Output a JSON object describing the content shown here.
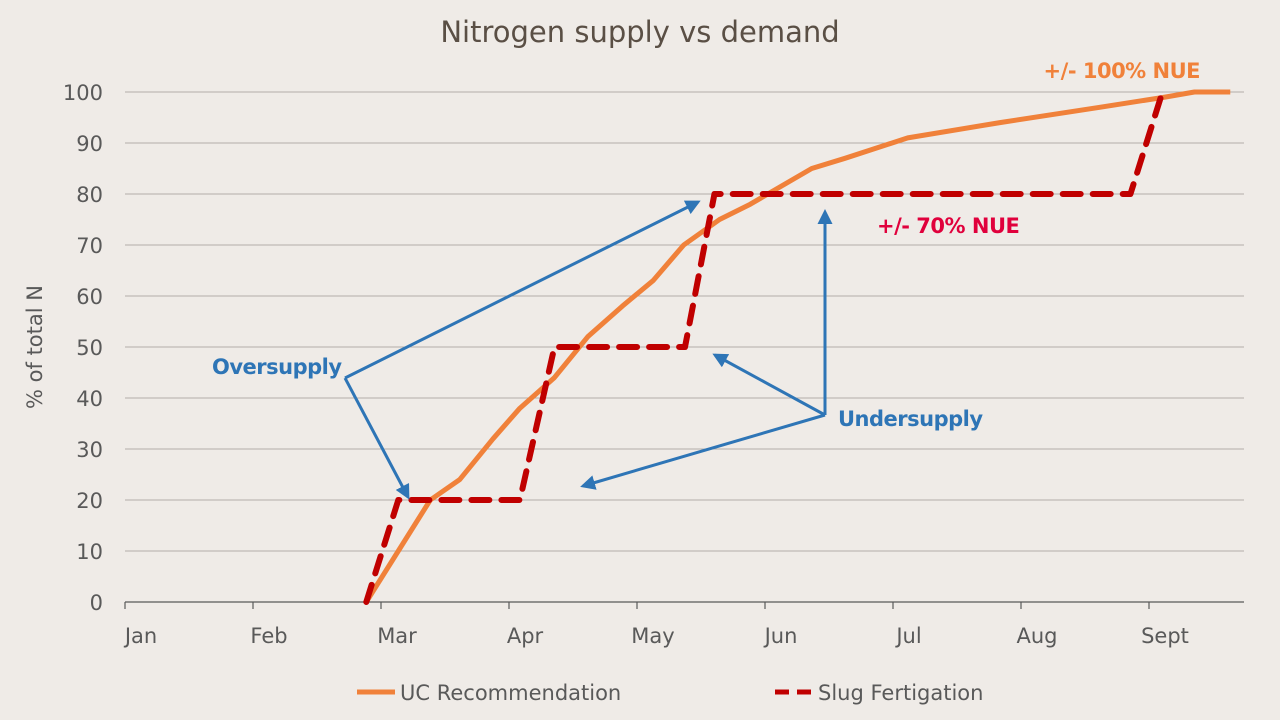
{
  "chart_data": {
    "type": "line",
    "title": "Nitrogen supply vs demand",
    "xlabel": "",
    "ylabel": "% of total N",
    "x_tick_labels": [
      "Jan",
      "Feb",
      "Mar",
      "Apr",
      "May",
      "Jun",
      "Jul",
      "Aug",
      "Sept"
    ],
    "y_ticks": [
      0,
      10,
      20,
      30,
      40,
      50,
      60,
      70,
      80,
      90,
      100
    ],
    "ylim": [
      0,
      100
    ],
    "x_unit": "month index (Jan=1)",
    "grid": "horizontal",
    "legend_placement": "bottom",
    "series": [
      {
        "name": "UC Recommendation",
        "color": "#f0813a",
        "style": "solid",
        "x": [
          2.76,
          3.01,
          3.26,
          3.49,
          3.75,
          3.96,
          4.23,
          4.49,
          4.76,
          5.0,
          5.24,
          5.52,
          5.76,
          6.24,
          6.5,
          6.99,
          7.71,
          8.49,
          9.0,
          9.23,
          9.51
        ],
        "y": [
          0,
          10,
          20,
          24,
          32,
          38,
          44,
          52,
          58,
          63,
          70,
          75,
          78,
          85,
          87,
          91,
          94,
          97,
          99,
          100,
          100
        ]
      },
      {
        "name": "Slug Fertigation",
        "color": "#c00000",
        "style": "dashed",
        "x": [
          2.76,
          3.01,
          3.96,
          4.23,
          5.25,
          5.48,
          8.73,
          8.98
        ],
        "y": [
          0,
          20,
          20,
          50,
          50,
          80,
          80,
          100
        ]
      }
    ],
    "annotations": {
      "nue_100": {
        "text": "+/- 100% NUE",
        "color": "#f0813a"
      },
      "nue_70": {
        "text": "+/- 70% NUE",
        "color": "#e0003c"
      },
      "oversupply": {
        "text": "Oversupply",
        "color": "#2e75b6"
      },
      "undersupply": {
        "text": "Undersupply",
        "color": "#2e75b6"
      }
    }
  }
}
